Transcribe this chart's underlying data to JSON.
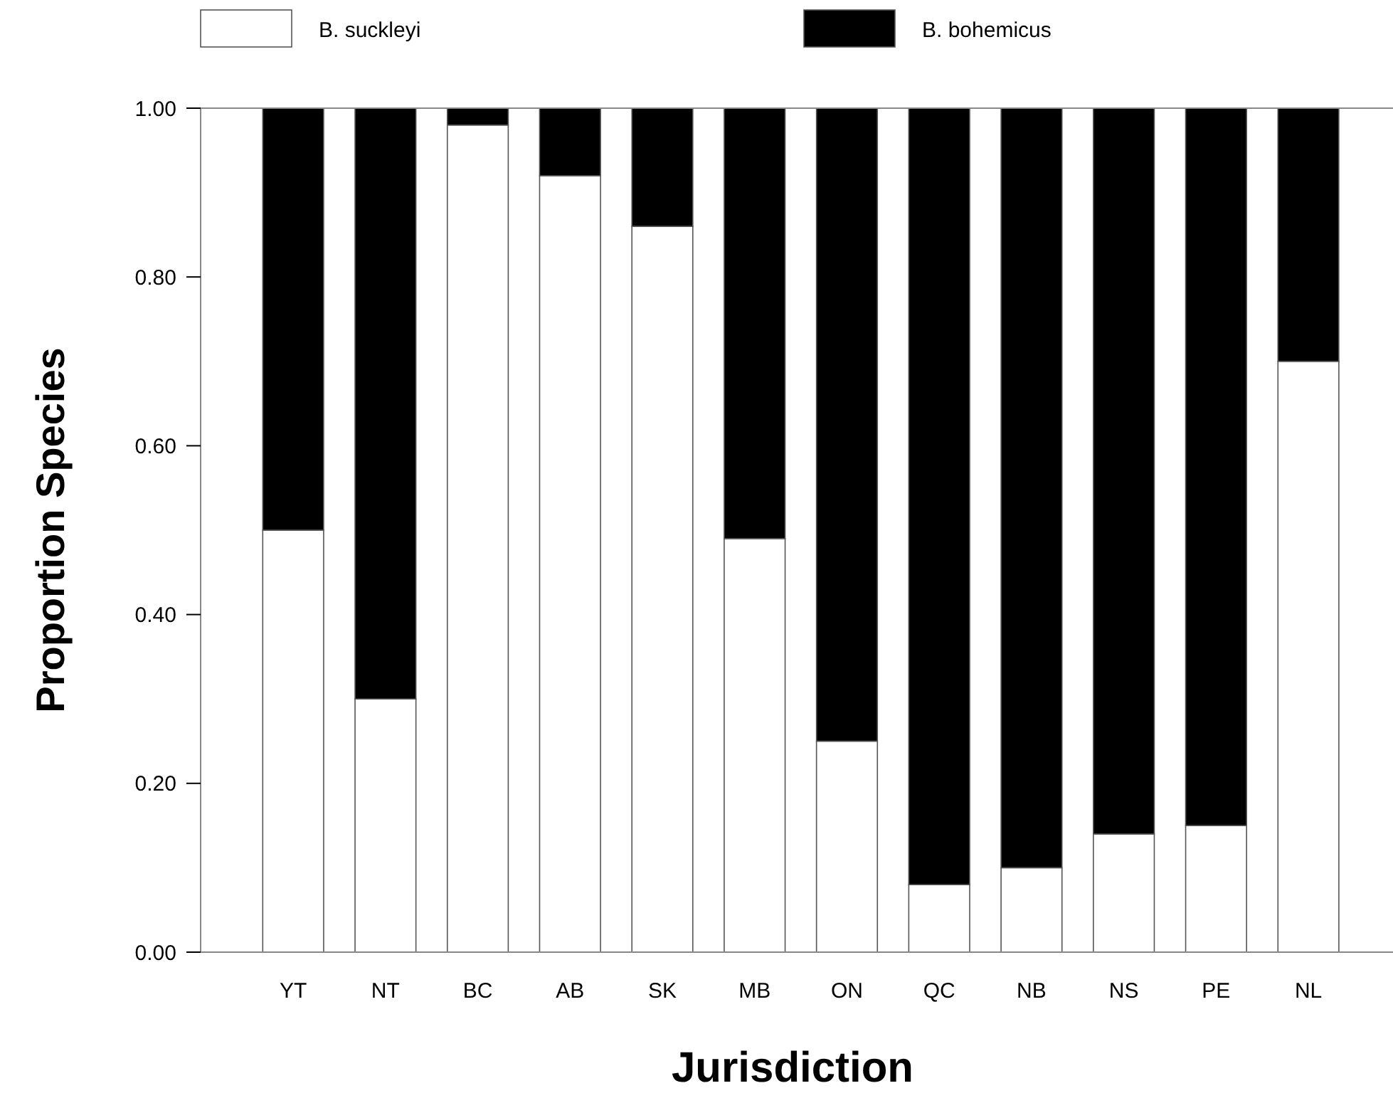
{
  "chart_data": {
    "type": "bar",
    "stacked": true,
    "xlabel": "Jurisdiction",
    "ylabel": "Proportion Species",
    "categories": [
      "YT",
      "NT",
      "BC",
      "AB",
      "SK",
      "MB",
      "ON",
      "QC",
      "NB",
      "NS",
      "PE",
      "NL"
    ],
    "series": [
      {
        "name": "B. suckleyi",
        "color": "#ffffff",
        "values": [
          0.5,
          0.3,
          0.98,
          0.92,
          0.86,
          0.49,
          0.25,
          0.08,
          0.1,
          0.14,
          0.15,
          0.7
        ]
      },
      {
        "name": "B. bohemicus",
        "color": "#000000",
        "values": [
          0.5,
          0.7,
          0.02,
          0.08,
          0.14,
          0.51,
          0.75,
          0.92,
          0.9,
          0.86,
          0.85,
          0.3
        ]
      }
    ],
    "ylim": [
      0,
      1
    ],
    "yticks": [
      {
        "value": 0,
        "label": "0.00"
      },
      {
        "value": 0.2,
        "label": "0.20"
      },
      {
        "value": 0.4,
        "label": "0.40"
      },
      {
        "value": 0.6,
        "label": "0.60"
      },
      {
        "value": 0.8,
        "label": "0.80"
      },
      {
        "value": 1,
        "label": "1.00"
      }
    ],
    "grid": false,
    "legend": "top"
  }
}
